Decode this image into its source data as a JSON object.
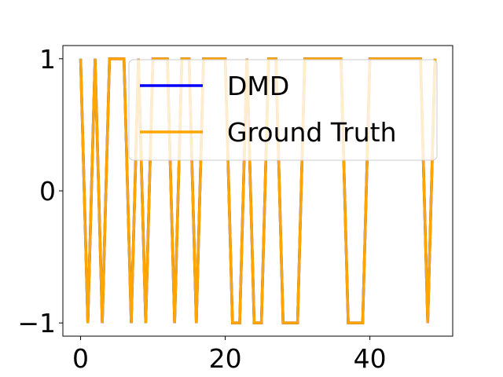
{
  "chart_data": {
    "type": "line",
    "title": "",
    "xlabel": "",
    "ylabel": "",
    "xlim": [
      -2.45,
      51.45
    ],
    "ylim": [
      -1.1,
      1.1
    ],
    "xticks": [
      0,
      20,
      40
    ],
    "yticks": [
      {
        "value": 1,
        "label": "1"
      },
      {
        "value": 0,
        "label": "0"
      },
      {
        "value": -1,
        "label": "−1"
      }
    ],
    "grid": false,
    "legend_position": "upper-right",
    "x": [
      0,
      1,
      2,
      3,
      4,
      5,
      6,
      7,
      8,
      9,
      10,
      11,
      12,
      13,
      14,
      15,
      16,
      17,
      18,
      19,
      20,
      21,
      22,
      23,
      24,
      25,
      26,
      27,
      28,
      29,
      30,
      31,
      32,
      33,
      34,
      35,
      36,
      37,
      38,
      39,
      40,
      41,
      42,
      43,
      44,
      45,
      46,
      47,
      48,
      49
    ],
    "series": [
      {
        "name": "DMD",
        "color": "#0000ff",
        "values": [
          1,
          -1,
          1,
          -1,
          1,
          1,
          1,
          -1,
          1,
          -1,
          1,
          1,
          1,
          -1,
          1,
          1,
          -1,
          1,
          1,
          1,
          1,
          -1,
          -1,
          1,
          -1,
          -1,
          1,
          1,
          -1,
          -1,
          -1,
          1,
          1,
          1,
          1,
          1,
          1,
          -1,
          -1,
          -1,
          1,
          1,
          1,
          1,
          1,
          1,
          1,
          1,
          -1,
          1
        ]
      },
      {
        "name": "Ground Truth",
        "color": "#ffa500",
        "values": [
          1,
          -1,
          1,
          -1,
          1,
          1,
          1,
          -1,
          1,
          -1,
          1,
          1,
          1,
          -1,
          1,
          1,
          -1,
          1,
          1,
          1,
          1,
          -1,
          -1,
          1,
          -1,
          -1,
          1,
          1,
          -1,
          -1,
          -1,
          1,
          1,
          1,
          1,
          1,
          1,
          -1,
          -1,
          -1,
          1,
          1,
          1,
          1,
          1,
          1,
          1,
          1,
          -1,
          1
        ]
      }
    ]
  }
}
